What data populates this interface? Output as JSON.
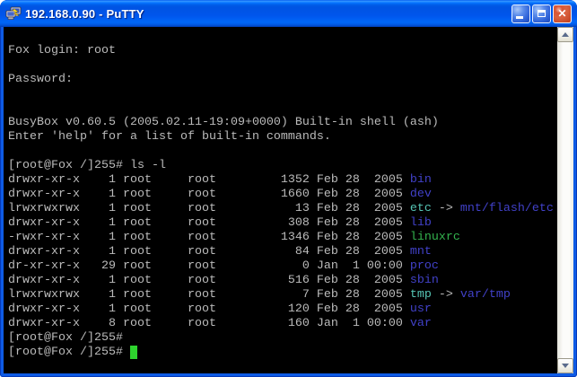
{
  "window": {
    "title": "192.168.0.90 - PuTTY",
    "icons": {
      "titlebar": "putty-icon",
      "minimize": "minimize-icon",
      "maximize": "maximize-icon",
      "close": "close-icon",
      "scroll_up": "chevron-up-icon",
      "scroll_down": "chevron-down-icon"
    }
  },
  "colors": {
    "terminal_bg": "#000000",
    "fg": "#BBBBBB",
    "dir": "#4141C8",
    "link": "#55C4B4",
    "exe": "#33B34E",
    "cursor": "#2ED42E",
    "titlebar_blue": "#0054E3",
    "border_blue": "#0E5BE5",
    "close_red": "#D14425"
  },
  "terminal": {
    "rows": [
      [],
      [
        {
          "t": "Fox login: root",
          "c": "fg"
        }
      ],
      [],
      [
        {
          "t": "Password:",
          "c": "fg"
        }
      ],
      [],
      [],
      [
        {
          "t": "BusyBox v0.60.5 (2005.02.11-19:09+0000) Built-in shell (ash)",
          "c": "fg"
        }
      ],
      [
        {
          "t": "Enter 'help' for a list of built-in commands.",
          "c": "fg"
        }
      ],
      [],
      [
        {
          "t": "[root@Fox /]255# ls -l",
          "c": "fg"
        }
      ],
      [
        {
          "t": "drwxr-xr-x    1 root     root         1352 Feb 28  2005 ",
          "c": "fg"
        },
        {
          "t": "bin",
          "c": "dir"
        }
      ],
      [
        {
          "t": "drwxr-xr-x    1 root     root         1660 Feb 28  2005 ",
          "c": "fg"
        },
        {
          "t": "dev",
          "c": "dir"
        }
      ],
      [
        {
          "t": "lrwxrwxrwx    1 root     root           13 Feb 28  2005 ",
          "c": "fg"
        },
        {
          "t": "etc",
          "c": "link"
        },
        {
          "t": " -> ",
          "c": "fg"
        },
        {
          "t": "mnt/flash/etc",
          "c": "dir"
        }
      ],
      [
        {
          "t": "drwxr-xr-x    1 root     root          308 Feb 28  2005 ",
          "c": "fg"
        },
        {
          "t": "lib",
          "c": "dir"
        }
      ],
      [
        {
          "t": "-rwxr-xr-x    1 root     root         1346 Feb 28  2005 ",
          "c": "fg"
        },
        {
          "t": "linuxrc",
          "c": "exe"
        }
      ],
      [
        {
          "t": "drwxr-xr-x    1 root     root           84 Feb 28  2005 ",
          "c": "fg"
        },
        {
          "t": "mnt",
          "c": "dir"
        }
      ],
      [
        {
          "t": "dr-xr-xr-x   29 root     root            0 Jan  1 00:00 ",
          "c": "fg"
        },
        {
          "t": "proc",
          "c": "dir"
        }
      ],
      [
        {
          "t": "drwxr-xr-x    1 root     root          516 Feb 28  2005 ",
          "c": "fg"
        },
        {
          "t": "sbin",
          "c": "dir"
        }
      ],
      [
        {
          "t": "lrwxrwxrwx    1 root     root            7 Feb 28  2005 ",
          "c": "fg"
        },
        {
          "t": "tmp",
          "c": "link"
        },
        {
          "t": " -> ",
          "c": "fg"
        },
        {
          "t": "var/tmp",
          "c": "dir"
        }
      ],
      [
        {
          "t": "drwxr-xr-x    1 root     root          120 Feb 28  2005 ",
          "c": "fg"
        },
        {
          "t": "usr",
          "c": "dir"
        }
      ],
      [
        {
          "t": "drwxr-xr-x    8 root     root          160 Jan  1 00:00 ",
          "c": "fg"
        },
        {
          "t": "var",
          "c": "dir"
        }
      ],
      [
        {
          "t": "[root@Fox /]255#",
          "c": "fg"
        }
      ],
      [
        {
          "t": "[root@Fox /]255# ",
          "c": "fg"
        },
        {
          "t": " ",
          "c": "cursor"
        }
      ]
    ]
  }
}
